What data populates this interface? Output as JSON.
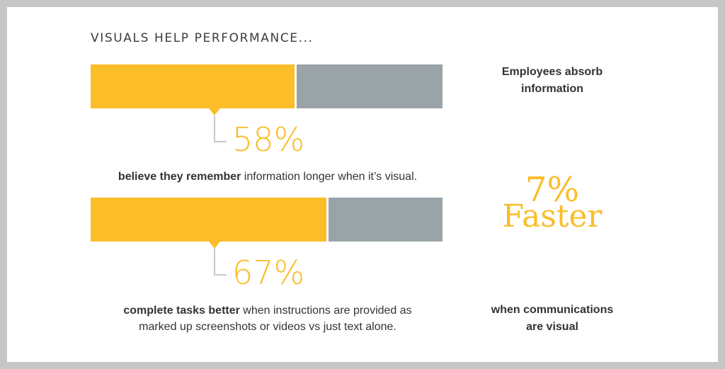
{
  "title": "VISUALS HELP PERFORMANCE...",
  "colors": {
    "accent": "#fbbd28",
    "remainder": "#99a3a8",
    "connector": "#c8c8c8",
    "text": "#333333"
  },
  "chart_data": {
    "type": "bar",
    "orientation": "horizontal-stacked",
    "series": [
      {
        "value": 58,
        "label": "58%",
        "caption_bold": "believe they remember",
        "caption_rest": " information longer when it’s visual."
      },
      {
        "value": 67,
        "label": "67%",
        "caption_bold": "complete tasks better",
        "caption_rest": " when instructions are provided as",
        "caption_line2": "marked up screenshots or videos vs just text alone."
      }
    ],
    "max": 100
  },
  "side": {
    "top_line1": "Employees absorb",
    "top_line2": "information",
    "stat_value": "7%",
    "stat_word": "Faster",
    "bottom_line1": "when communications",
    "bottom_line2": "are visual"
  }
}
